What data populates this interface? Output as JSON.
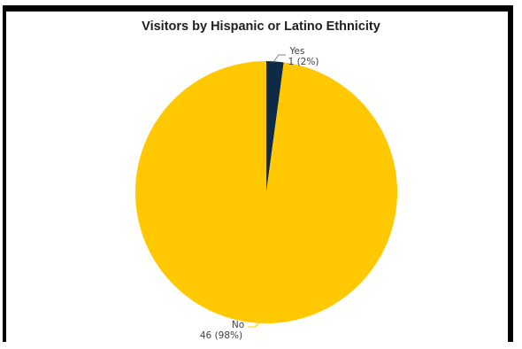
{
  "chart_data": {
    "type": "pie",
    "title": "Visitors by Hispanic or Latino Ethnicity",
    "slices": [
      {
        "name": "Yes",
        "value": 1,
        "label": "1 (2%)",
        "color": "#0e2a47"
      },
      {
        "name": "No",
        "value": 46,
        "label": "46 (98%)",
        "color": "#ffc800"
      }
    ]
  }
}
